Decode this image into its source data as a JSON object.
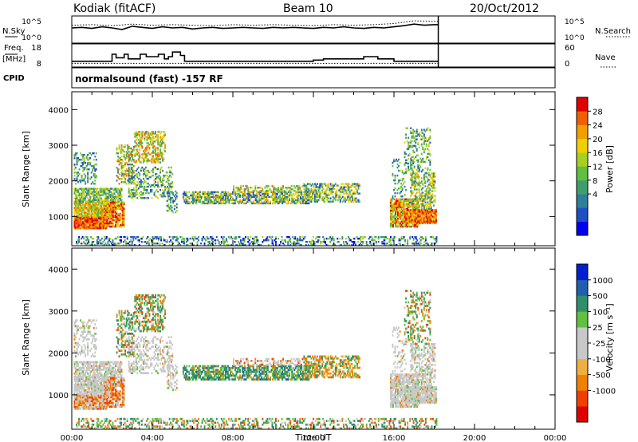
{
  "header": {
    "station": "Kodiak (fitACF)",
    "beam": "Beam 10",
    "date": "20/Oct/2012",
    "cpid_label": "CPID",
    "cpid_text": "normalsound (fast) -157 RF"
  },
  "colors": {
    "power": [
      "#0000f0",
      "#1f4fc6",
      "#2f7f9a",
      "#3f9f6c",
      "#60c040",
      "#a8d020",
      "#f0d000",
      "#f0a000",
      "#f06000",
      "#e00000"
    ],
    "velocity": [
      "#e00000",
      "#f04000",
      "#f08000",
      "#f0b040",
      "#c8c8c8",
      "#c8c8c8",
      "#60c040",
      "#2f8f6c",
      "#1f5fb0",
      "#0020d0"
    ]
  },
  "chart_data": [
    {
      "type": "line",
      "title": "",
      "left_label": "N.Sky",
      "right_label": "N.Search",
      "yticks_left": [
        "10^5",
        "10^0"
      ],
      "yticks_right": [
        "10^5",
        "10^0"
      ],
      "series": [
        {
          "style": "solid",
          "x": [
            0,
            0.5,
            1,
            1.5,
            2,
            2.5,
            3,
            3.5,
            4,
            4.5,
            5,
            5.5,
            6,
            6.5,
            7,
            7.5,
            8,
            8.5,
            9,
            9.5,
            10,
            10.5,
            11,
            11.5,
            12,
            12.5,
            13,
            13.5,
            14,
            14.5,
            15,
            15.5,
            16,
            16.5,
            17,
            17.5,
            18,
            18.2
          ],
          "y": [
            2.8,
            2.9,
            2.7,
            3.0,
            2.8,
            2.5,
            3.1,
            2.9,
            2.7,
            3.0,
            2.8,
            2.9,
            2.6,
            2.8,
            2.9,
            2.7,
            2.8,
            2.9,
            2.8,
            2.7,
            2.9,
            2.8,
            2.9,
            2.8,
            2.7,
            2.9,
            2.8,
            3.0,
            2.8,
            2.7,
            2.9,
            2.8,
            3.0,
            3.2,
            3.5,
            3.3,
            3.4,
            3.4
          ]
        },
        {
          "style": "dotted",
          "x": [
            0,
            1,
            2,
            3,
            4,
            5,
            6,
            7,
            8,
            9,
            10,
            11,
            12,
            13,
            14,
            15,
            16,
            17,
            18,
            18.2
          ],
          "y": [
            3.3,
            3.4,
            3.2,
            3.5,
            3.3,
            3.4,
            3.3,
            3.2,
            3.4,
            3.3,
            3.4,
            3.3,
            3.2,
            3.4,
            3.3,
            3.4,
            3.6,
            4.1,
            4.0,
            4.0
          ]
        }
      ],
      "ylim": [
        0,
        5
      ]
    },
    {
      "type": "line",
      "title": "",
      "left_label": "Freq.",
      "left_unit": "[MHz]",
      "right_label": "Nave",
      "yticks_left": [
        "18",
        "8"
      ],
      "yticks_right": [
        "60",
        "0"
      ],
      "series": [
        {
          "style": "solid",
          "x": [
            0,
            2.0,
            2.0,
            2.2,
            2.2,
            2.6,
            2.6,
            2.8,
            2.8,
            3.4,
            3.4,
            3.7,
            3.7,
            4.3,
            4.3,
            4.6,
            4.6,
            4.8,
            4.8,
            5.0,
            5.0,
            5.4,
            5.4,
            5.6,
            5.6,
            12.0,
            12.0,
            12.5,
            12.5,
            14.5,
            14.5,
            15.2,
            15.2,
            16.0,
            16.0,
            18.2
          ],
          "y": [
            10.5,
            10.5,
            13.5,
            13.5,
            12,
            12,
            13.5,
            13.5,
            11.5,
            11.5,
            13.5,
            13.5,
            12.5,
            12.5,
            13.5,
            13.5,
            11.5,
            11.5,
            12.5,
            12.5,
            14.5,
            14.5,
            13.0,
            13.0,
            10.5,
            10.5,
            11,
            11,
            11.5,
            11.5,
            12.5,
            12.5,
            11.5,
            11.5,
            10.5,
            10.5
          ]
        },
        {
          "style": "dotted",
          "x": [
            0,
            18.2
          ],
          "y": [
            9.6,
            9.6
          ]
        }
      ],
      "ylim": [
        8,
        18
      ]
    },
    {
      "type": "heatmap",
      "title": "",
      "ylabel": "Slant Range [km]",
      "colorbar_label": "Power [dB]",
      "colorbar_ticks": [
        "28",
        "24",
        "20",
        "16",
        "12",
        "8",
        "4"
      ],
      "yticks": [
        "4000",
        "3000",
        "2000",
        "1000"
      ],
      "ylim": [
        180,
        4500
      ],
      "xlim": [
        0,
        24
      ]
    },
    {
      "type": "heatmap",
      "title": "",
      "xlabel": "Time UT",
      "ylabel": "Slant Range [km]",
      "colorbar_label": "Velocity [m s⁻¹]",
      "colorbar_ticks": [
        "1000",
        "500",
        "100",
        "25",
        "-25",
        "-100",
        "-500",
        "-1000"
      ],
      "xticks": [
        "00:00",
        "04:00",
        "08:00",
        "12:00",
        "16:00",
        "20:00",
        "00:00"
      ],
      "yticks": [
        "4000",
        "3000",
        "2000",
        "1000"
      ],
      "ylim": [
        180,
        4500
      ],
      "xlim": [
        0,
        24
      ]
    }
  ]
}
